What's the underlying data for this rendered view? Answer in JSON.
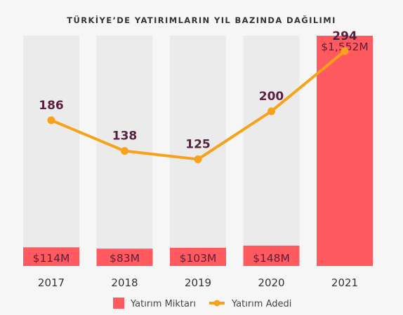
{
  "chart_data": {
    "type": "bar",
    "title": "TÜRKİYE’DE YATIRIMLARIN YIL BAZINDA DAĞILIMI",
    "categories": [
      "2017",
      "2018",
      "2019",
      "2020",
      "2021"
    ],
    "series": [
      {
        "name": "Yatırım Miktarı",
        "type": "bar",
        "unit": "$M",
        "values": [
          114,
          83,
          103,
          148,
          1552
        ],
        "labels": [
          "$114M",
          "$83M",
          "$103M",
          "$148M",
          "$1,552M"
        ],
        "color": "#ff5a5f"
      },
      {
        "name": "Yatırım Adedi",
        "type": "line",
        "values": [
          186,
          138,
          125,
          200,
          294
        ],
        "labels": [
          "186",
          "138",
          "125",
          "200",
          "294"
        ],
        "color": "#f7a21b"
      }
    ],
    "bar_ylim": [
      0,
      1552
    ],
    "line_ylim": [
      0,
      294
    ],
    "background_bar_color": "#ebebeb",
    "legend_position": "bottom",
    "grid": false
  }
}
